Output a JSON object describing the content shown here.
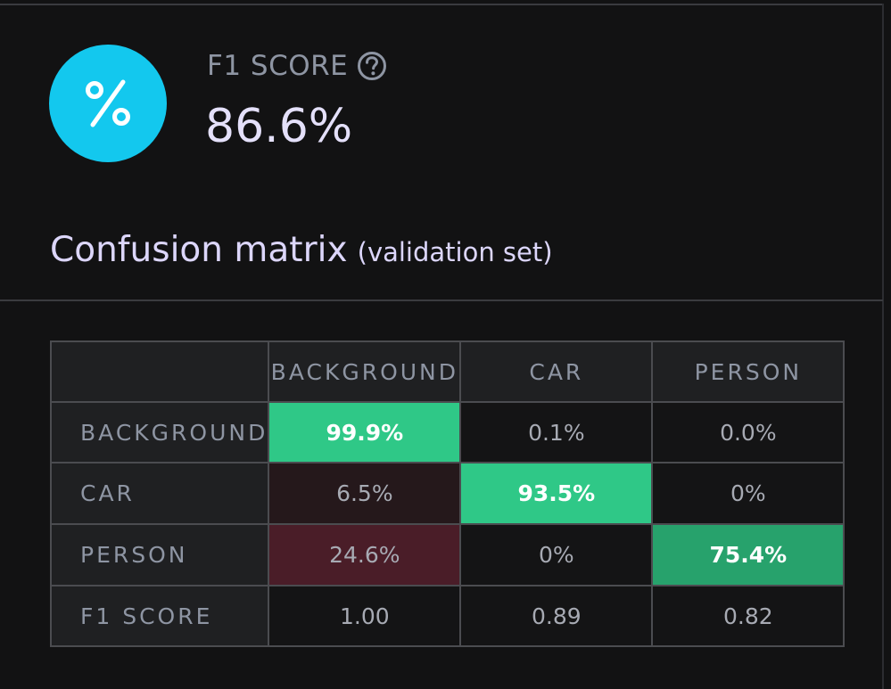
{
  "colors": {
    "icon_circle": "#13c8ee",
    "label": "#8e95a3",
    "value": "#e4e0fa",
    "title": "#dcd6fb",
    "header_bg": "#1f2022",
    "cell_text": "#a7aab3",
    "strong_text": "#ffffff",
    "diag_high": "#2fc887",
    "diag_mid": "#27a26c",
    "off_low": "#25181b",
    "off_mid": "#4a1d28",
    "cell_bg": "#141415"
  },
  "metric": {
    "icon": "percent-icon",
    "label": "F1 SCORE",
    "help_icon": "question-circle-icon",
    "value": "86.6%"
  },
  "section": {
    "title": "Confusion matrix",
    "subtitle": "(validation set)"
  },
  "matrix": {
    "columns": [
      "BACKGROUND",
      "CAR",
      "PERSON"
    ],
    "rows": [
      {
        "label": "BACKGROUND",
        "cells": [
          {
            "text": "99.9%",
            "value": 99.9,
            "style": "diag_high"
          },
          {
            "text": "0.1%",
            "value": 0.1,
            "style": "plain"
          },
          {
            "text": "0.0%",
            "value": 0.0,
            "style": "plain"
          }
        ]
      },
      {
        "label": "CAR",
        "cells": [
          {
            "text": "6.5%",
            "value": 6.5,
            "style": "off_low"
          },
          {
            "text": "93.5%",
            "value": 93.5,
            "style": "diag_high"
          },
          {
            "text": "0%",
            "value": 0,
            "style": "plain"
          }
        ]
      },
      {
        "label": "PERSON",
        "cells": [
          {
            "text": "24.6%",
            "value": 24.6,
            "style": "off_mid"
          },
          {
            "text": "0%",
            "value": 0,
            "style": "plain"
          },
          {
            "text": "75.4%",
            "value": 75.4,
            "style": "diag_mid"
          }
        ]
      },
      {
        "label": "F1 SCORE",
        "cells": [
          {
            "text": "1.00",
            "value": 1.0,
            "style": "plain"
          },
          {
            "text": "0.89",
            "value": 0.89,
            "style": "plain"
          },
          {
            "text": "0.82",
            "value": 0.82,
            "style": "plain"
          }
        ]
      }
    ]
  }
}
